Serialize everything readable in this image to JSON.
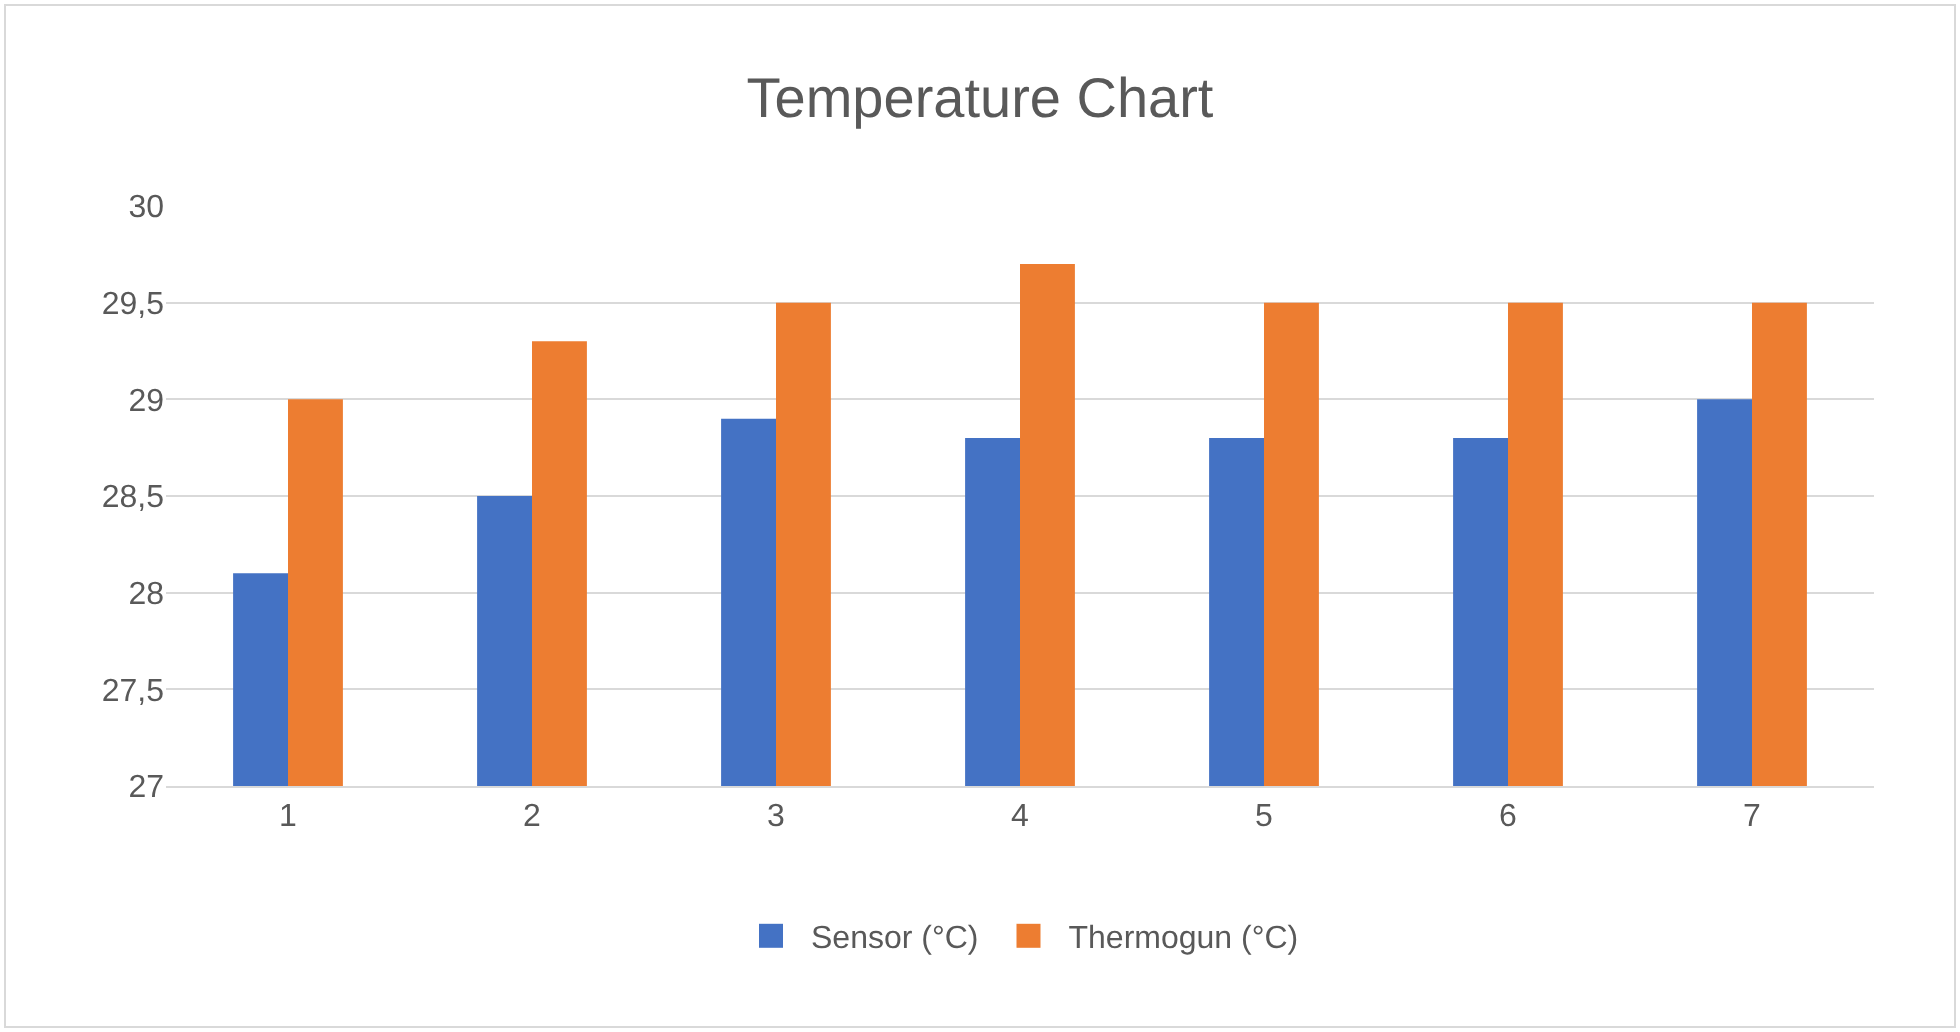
{
  "chart_data": {
    "type": "bar",
    "title": "Temperature Chart",
    "categories": [
      "1",
      "2",
      "3",
      "4",
      "5",
      "6",
      "7"
    ],
    "series": [
      {
        "name": "Sensor (°C)",
        "color": "#4472c4",
        "values": [
          28.1,
          28.5,
          28.9,
          28.8,
          28.8,
          28.8,
          29.0
        ]
      },
      {
        "name": "Thermogun (°C)",
        "color": "#ed7d31",
        "values": [
          29.0,
          29.3,
          29.5,
          29.7,
          29.5,
          29.5,
          29.5
        ]
      }
    ],
    "ylim": [
      27,
      30
    ],
    "yticks": [
      27,
      {
        "value": 27.5,
        "label": "27,5"
      },
      28,
      {
        "value": 28.5,
        "label": "28,5"
      },
      29,
      {
        "value": 29.5,
        "label": "29,5"
      },
      30
    ],
    "grid": "y",
    "legend": "bottom"
  }
}
